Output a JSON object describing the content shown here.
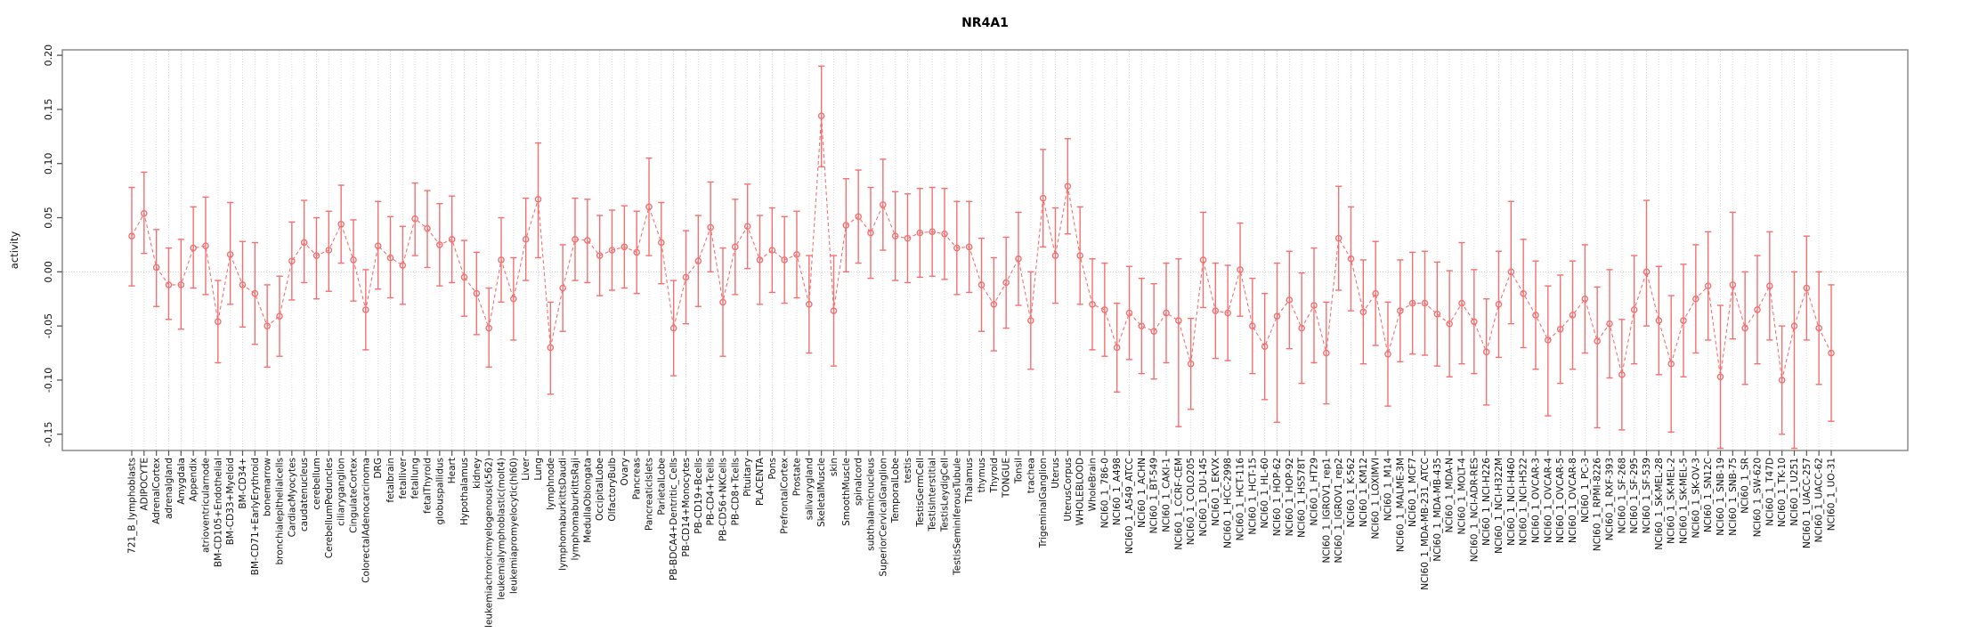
{
  "chart": {
    "background": "#ffffff",
    "accent_color": "#f57070",
    "box_color": "#8c8c8c",
    "grid_color": "#d9d9d9",
    "text_color": "#111111"
  },
  "chart_data": {
    "type": "scatter",
    "title": "NR4A1",
    "xlabel": "",
    "ylabel": "activity",
    "ylim": [
      -0.165,
      0.205
    ],
    "yticks": [
      "-0.15",
      "-0.10",
      "-0.05",
      "0.00",
      "0.05",
      "0.10",
      "0.15",
      "0.20"
    ],
    "grid": "vertical dotted line per category; dotted horizontal reference line at 0",
    "legend": "none",
    "marker": "open-circle",
    "line_style": "dashed",
    "error_bars": true,
    "categories": [
      "721_B_lymphoblasts",
      "ADIPOCYTE",
      "AdrenalCortex",
      "adrenalgland",
      "Amygdala",
      "Appendix",
      "atrioventricularnode",
      "BM-CD105+Endothelial",
      "BM-CD33+Myeloid",
      "BM-CD34+",
      "BM-CD71+EarlyErythroid",
      "bonemarrow",
      "bronchialepithelialcells",
      "CardiacMyocytes",
      "caudatenucleus",
      "cerebellum",
      "CerebellumPeduncles",
      "ciliaryganglion",
      "CingulateCortex",
      "ColorectalAdenocarcinoma",
      "DRG",
      "fetalbrain",
      "fetalliver",
      "fetallung",
      "fetalThyroid",
      "globuspallidus",
      "Heart",
      "Hypothalamus",
      "kidney",
      "leukemiachronicmyelogenous(k562)",
      "leukemialymphoblastic(molt4)",
      "leukemiapromyelocytic(hl60)",
      "Liver",
      "Lung",
      "lymphnode",
      "lymphomaburkittsDaudi",
      "lymphomaburkittsRaji",
      "MedullaOblongata",
      "OccipitalLobe",
      "OlfactoryBulb",
      "Ovary",
      "Pancreas",
      "PancreaticIslets",
      "ParietalLobe",
      "PB-BDCA4+Dentritic_Cells",
      "PB-CD14+Monocytes",
      "PB-CD19+Bcells",
      "PB-CD4+Tcells",
      "PB-CD56+NKCells",
      "PB-CD8+Tcells",
      "Pituitary",
      "PLACENTA",
      "Pons",
      "PrefrontalCortex",
      "Prostate",
      "salivarygland",
      "SkeletalMuscle",
      "skin",
      "SmoothMuscle",
      "spinalcord",
      "subthalamicnucleus",
      "SuperiorCervicalGanglion",
      "TemporalLobe",
      "testis",
      "TestisGermCell",
      "TestisInterstitial",
      "TestisLeydigCell",
      "TestisSeminiferousTubule",
      "Thalamus",
      "thymus",
      "Thyroid",
      "TONGUE",
      "Tonsil",
      "trachea",
      "TrigeminalGanglion",
      "Uterus",
      "UterusCorpus",
      "WHOLEBLOOD",
      "WholeBrain",
      "NCI60_1_786-0",
      "NCI60_1_A498",
      "NCI60_1_A549_ATCC",
      "NCI60_1_ACHN",
      "NCI60_1_BT-549",
      "NCI60_1_CAKI-1",
      "NCI60_1_CCRF-CEM",
      "NCI60_1_COLO205",
      "NCI60_1_DU-145",
      "NCI60_1_EKVX",
      "NCI60_1_HCC-2998",
      "NCI60_1_HCT-116",
      "NCI60_1_HCT-15",
      "NCI60_1_HL-60",
      "NCI60_1_HOP-62",
      "NCI60_1_HOP-92",
      "NCI60_1_HS578T",
      "NCI60_1_HT29",
      "NCI60_1_IGROV1_rep1",
      "NCI60_1_IGROV1_rep2",
      "NCI60_1_K-562",
      "NCI60_1_KM12",
      "NCI60_1_LOXIMVI",
      "NCI60_1_M14",
      "NCI60_1_MALME-3M",
      "NCI60_1_MCF7",
      "NCI60_1_MDA-MB-231_ATCC",
      "NCI60_1_MDA-MB-435",
      "NCI60_1_MDA-N",
      "NCI60_1_MOLT-4",
      "NCI60_1_NCI-ADR-RES",
      "NCI60_1_NCI-H226",
      "NCI60_1_NCI-H322M",
      "NCI60_1_NCI-H460",
      "NCI60_1_NCI-H522",
      "NCI60_1_OVCAR-3",
      "NCI60_1_OVCAR-4",
      "NCI60_1_OVCAR-5",
      "NCI60_1_OVCAR-8",
      "NCI60_1_PC-3",
      "NCI60_1_RPMI-8226",
      "NCI60_1_RXF-393",
      "NCI60_1_SF-268",
      "NCI60_1_SF-295",
      "NCI60_1_SF-539",
      "NCI60_1_SK-MEL-28",
      "NCI60_1_SK-MEL-2",
      "NCI60_1_SK-MEL-5",
      "NCI60_1_SK-OV-3",
      "NCI60_1_SN12C",
      "NCI60_1_SNB-19",
      "NCI60_1_SNB-75",
      "NCI60_1_SR",
      "NCI60_1_SW-620",
      "NCI60_1_T47D",
      "NCI60_1_TK-10",
      "NCI60_1_U251",
      "NCI60_1_UACC-257",
      "NCI60_1_UACC-62",
      "NCI60_1_UO-31"
    ],
    "series": [
      {
        "name": "activity",
        "values": [
          0.033,
          0.054,
          0.004,
          -0.012,
          -0.012,
          0.022,
          0.024,
          -0.046,
          0.016,
          -0.012,
          -0.02,
          -0.05,
          -0.041,
          0.01,
          0.027,
          0.015,
          0.02,
          0.044,
          0.011,
          -0.035,
          0.024,
          0.013,
          0.006,
          0.049,
          0.04,
          0.025,
          0.03,
          -0.005,
          -0.02,
          -0.052,
          0.011,
          -0.025,
          0.03,
          0.067,
          -0.07,
          -0.015,
          0.03,
          0.029,
          0.015,
          0.02,
          0.023,
          0.018,
          0.06,
          0.027,
          -0.052,
          -0.005,
          0.01,
          0.041,
          -0.028,
          0.023,
          0.042,
          0.011,
          0.02,
          0.011,
          0.016,
          -0.03,
          0.144,
          -0.036,
          0.043,
          0.051,
          0.036,
          0.062,
          0.033,
          0.031,
          0.036,
          0.037,
          0.035,
          0.022,
          0.023,
          -0.012,
          -0.03,
          -0.01,
          0.012,
          -0.045,
          0.068,
          0.015,
          0.079,
          0.015,
          -0.03,
          -0.035,
          -0.07,
          -0.038,
          -0.05,
          -0.055,
          -0.038,
          -0.045,
          -0.085,
          0.011,
          -0.036,
          -0.038,
          0.002,
          -0.05,
          -0.069,
          -0.041,
          -0.026,
          -0.052,
          -0.031,
          -0.075,
          0.031,
          0.012,
          -0.037,
          -0.02,
          -0.076,
          -0.036,
          -0.029,
          -0.029,
          -0.039,
          -0.048,
          -0.029,
          -0.046,
          -0.074,
          -0.03,
          0.0,
          -0.02,
          -0.04,
          -0.063,
          -0.053,
          -0.04,
          -0.025,
          -0.064,
          -0.048,
          -0.095,
          -0.035,
          0.0,
          -0.045,
          -0.085,
          -0.045,
          -0.025,
          -0.013,
          -0.097,
          -0.012,
          -0.052,
          -0.035,
          -0.013,
          -0.1,
          -0.05,
          -0.015,
          -0.052,
          -0.075
        ],
        "err_low": [
          -0.013,
          0.017,
          -0.032,
          -0.044,
          -0.053,
          -0.015,
          -0.021,
          -0.084,
          -0.03,
          -0.051,
          -0.067,
          -0.088,
          -0.078,
          -0.026,
          -0.01,
          -0.025,
          -0.018,
          0.008,
          -0.027,
          -0.072,
          -0.016,
          -0.024,
          -0.03,
          0.015,
          0.004,
          -0.013,
          -0.01,
          -0.041,
          -0.058,
          -0.088,
          -0.028,
          -0.063,
          -0.008,
          0.013,
          -0.113,
          -0.055,
          -0.008,
          -0.01,
          -0.022,
          -0.017,
          -0.015,
          -0.02,
          0.015,
          -0.011,
          -0.096,
          -0.048,
          -0.032,
          0.0,
          -0.078,
          -0.021,
          0.003,
          -0.03,
          -0.019,
          -0.029,
          -0.024,
          -0.075,
          0.097,
          -0.087,
          0.0,
          0.008,
          -0.006,
          0.02,
          -0.008,
          -0.01,
          -0.005,
          -0.004,
          -0.007,
          -0.021,
          -0.019,
          -0.055,
          -0.073,
          -0.052,
          -0.031,
          -0.09,
          0.023,
          -0.029,
          0.035,
          -0.03,
          -0.072,
          -0.078,
          -0.111,
          -0.081,
          -0.094,
          -0.099,
          -0.084,
          -0.143,
          -0.127,
          -0.033,
          -0.08,
          -0.082,
          -0.041,
          -0.094,
          -0.118,
          -0.139,
          -0.071,
          -0.103,
          -0.084,
          -0.122,
          -0.017,
          -0.036,
          -0.085,
          -0.068,
          -0.124,
          -0.083,
          -0.076,
          -0.077,
          -0.087,
          -0.097,
          -0.085,
          -0.094,
          -0.123,
          -0.079,
          -0.048,
          -0.07,
          -0.09,
          -0.133,
          -0.103,
          -0.09,
          -0.075,
          -0.144,
          -0.098,
          -0.146,
          -0.085,
          -0.05,
          -0.095,
          -0.148,
          -0.097,
          -0.075,
          -0.063,
          -0.163,
          -0.062,
          -0.104,
          -0.085,
          -0.063,
          -0.15,
          -0.163,
          -0.063,
          -0.104,
          -0.138
        ],
        "err_high": [
          0.078,
          0.092,
          0.039,
          0.022,
          0.03,
          0.06,
          0.069,
          -0.008,
          0.064,
          0.028,
          0.027,
          -0.012,
          -0.004,
          0.046,
          0.066,
          0.05,
          0.056,
          0.08,
          0.048,
          0.002,
          0.065,
          0.051,
          0.042,
          0.082,
          0.075,
          0.063,
          0.07,
          0.029,
          0.018,
          -0.015,
          0.05,
          0.013,
          0.068,
          0.119,
          -0.028,
          0.025,
          0.068,
          0.067,
          0.052,
          0.057,
          0.061,
          0.056,
          0.105,
          0.064,
          -0.008,
          0.038,
          0.052,
          0.083,
          0.022,
          0.067,
          0.081,
          0.052,
          0.059,
          0.051,
          0.056,
          0.015,
          0.19,
          0.015,
          0.086,
          0.094,
          0.078,
          0.104,
          0.074,
          0.072,
          0.077,
          0.078,
          0.077,
          0.065,
          0.065,
          0.031,
          0.013,
          0.032,
          0.055,
          0.0,
          0.113,
          0.059,
          0.123,
          0.06,
          0.012,
          0.008,
          -0.029,
          0.005,
          -0.006,
          -0.011,
          0.008,
          0.012,
          -0.043,
          0.055,
          0.008,
          0.006,
          0.045,
          -0.006,
          -0.02,
          0.008,
          0.019,
          -0.001,
          0.022,
          -0.028,
          0.079,
          0.06,
          0.011,
          0.028,
          -0.028,
          0.011,
          0.018,
          0.019,
          0.009,
          0.001,
          0.027,
          0.002,
          -0.025,
          0.019,
          0.065,
          0.03,
          0.01,
          -0.013,
          -0.003,
          0.01,
          0.025,
          -0.014,
          0.002,
          -0.044,
          0.015,
          0.066,
          0.005,
          -0.022,
          0.007,
          0.025,
          0.037,
          -0.031,
          0.055,
          0.0,
          0.015,
          0.037,
          -0.05,
          0.0,
          0.033,
          0.0,
          -0.012
        ]
      }
    ]
  }
}
